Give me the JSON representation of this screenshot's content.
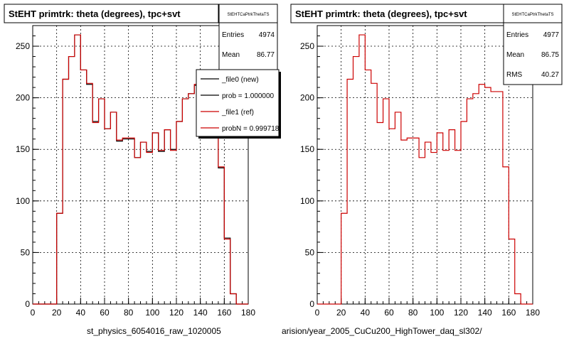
{
  "footer_left": "st_physics_6054016_raw_1020005",
  "footer_right": "arision/year_2005_CuCu200_HighTower_daq_sl302/",
  "chart_data": [
    {
      "type": "histogram",
      "title": "StEHT primtrk: theta (degrees), tpc+svt",
      "xlim": [
        0,
        180
      ],
      "ylim": [
        0,
        270
      ],
      "xticks": [
        0,
        20,
        40,
        60,
        80,
        100,
        120,
        140,
        160,
        180
      ],
      "yticks": [
        0,
        50,
        100,
        150,
        200,
        250
      ],
      "grid": true,
      "bin_width": 5,
      "bin_edges_start": 0,
      "stats": {
        "name": "StEHTCaPtrkThetaTS",
        "entries_label": "Entries",
        "entries": "4974",
        "mean_label": "Mean",
        "mean": "86.77"
      },
      "legend": {
        "placement": "top-right",
        "entries": [
          {
            "label": "_file0 (new)",
            "color": "#000000"
          },
          {
            "label": "prob = 1.000000",
            "color": "#000000"
          },
          {
            "label": "_file1 (ref)",
            "color": "#cc0000"
          },
          {
            "label": "probN = 0.999718",
            "color": "#cc0000"
          }
        ]
      },
      "series": [
        {
          "name": "_file0 (new)",
          "color": "#000000",
          "values": [
            0,
            0,
            0,
            0,
            88,
            218,
            240,
            261,
            227,
            213,
            177,
            199,
            170,
            186,
            158,
            160,
            160,
            142,
            157,
            148,
            166,
            148,
            169,
            150,
            177,
            199,
            204,
            212,
            210,
            206,
            206,
            132,
            64,
            10,
            0,
            0
          ]
        },
        {
          "name": "_file1 (ref)",
          "color": "#cc0000",
          "values": [
            0,
            0,
            0,
            0,
            88,
            218,
            240,
            261,
            227,
            214,
            176,
            199,
            170,
            186,
            159,
            161,
            161,
            142,
            157,
            147,
            166,
            149,
            169,
            149,
            177,
            199,
            204,
            213,
            210,
            206,
            206,
            133,
            63,
            10,
            0,
            0
          ]
        }
      ]
    },
    {
      "type": "histogram",
      "title": "StEHT primtrk: theta (degrees), tpc+svt",
      "xlim": [
        0,
        180
      ],
      "ylim": [
        0,
        270
      ],
      "xticks": [
        0,
        20,
        40,
        60,
        80,
        100,
        120,
        140,
        160,
        180
      ],
      "yticks": [
        0,
        50,
        100,
        150,
        200,
        250
      ],
      "grid": true,
      "bin_width": 5,
      "bin_edges_start": 0,
      "stats": {
        "name": "StEHTCaPtrkThetaTS",
        "entries_label": "Entries",
        "entries": "4977",
        "mean_label": "Mean",
        "mean": "86.75",
        "rms_label": "RMS",
        "rms": "40.27"
      },
      "series": [
        {
          "name": "_file1 (ref)",
          "color": "#cc0000",
          "values": [
            0,
            0,
            0,
            0,
            88,
            218,
            240,
            261,
            227,
            214,
            176,
            199,
            170,
            186,
            159,
            161,
            161,
            142,
            157,
            147,
            166,
            149,
            169,
            149,
            177,
            199,
            204,
            213,
            210,
            206,
            206,
            133,
            63,
            10,
            0,
            0
          ]
        }
      ]
    }
  ]
}
